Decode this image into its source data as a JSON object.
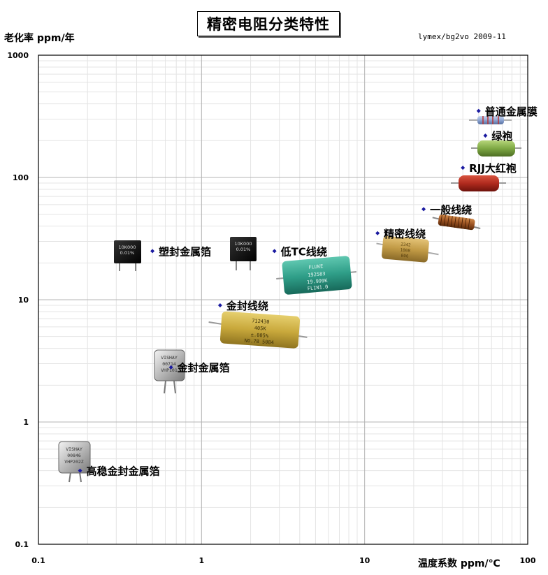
{
  "title": "精密电阻分类特性",
  "credit": "lymex/bg2vo 2009-11",
  "chart_data": {
    "type": "scatter",
    "xscale": "log",
    "yscale": "log",
    "xlim": [
      0.1,
      100
    ],
    "ylim": [
      0.1,
      1000
    ],
    "xlabel": "温度系数 ppm/℃",
    "ylabel": "老化率 ppm/年",
    "x_ticks": [
      "0.1",
      "1",
      "10",
      "100"
    ],
    "y_ticks": [
      "0.1",
      "1",
      "10",
      "100",
      "1000"
    ],
    "grid": true,
    "points": [
      {
        "label": "普通金属膜",
        "x": 50,
        "y": 350
      },
      {
        "label": "绿袍",
        "x": 55,
        "y": 220
      },
      {
        "label": "RJJ大红袍",
        "x": 40,
        "y": 120
      },
      {
        "label": "一般线绕",
        "x": 23,
        "y": 55
      },
      {
        "label": "精密线绕",
        "x": 12,
        "y": 35
      },
      {
        "label": "低TC线绕",
        "x": 2.8,
        "y": 25
      },
      {
        "label": "塑封金属箔",
        "x": 0.5,
        "y": 25
      },
      {
        "label": "金封线绕",
        "x": 1.3,
        "y": 9
      },
      {
        "label": "金封金属箔",
        "x": 0.65,
        "y": 2.8
      },
      {
        "label": "高稳金封金属箔",
        "x": 0.18,
        "y": 0.4
      }
    ]
  },
  "colors": {
    "grid_major": "#b4b4b4",
    "grid_minor": "#e4e4e4",
    "point": "#1a1aa0"
  }
}
